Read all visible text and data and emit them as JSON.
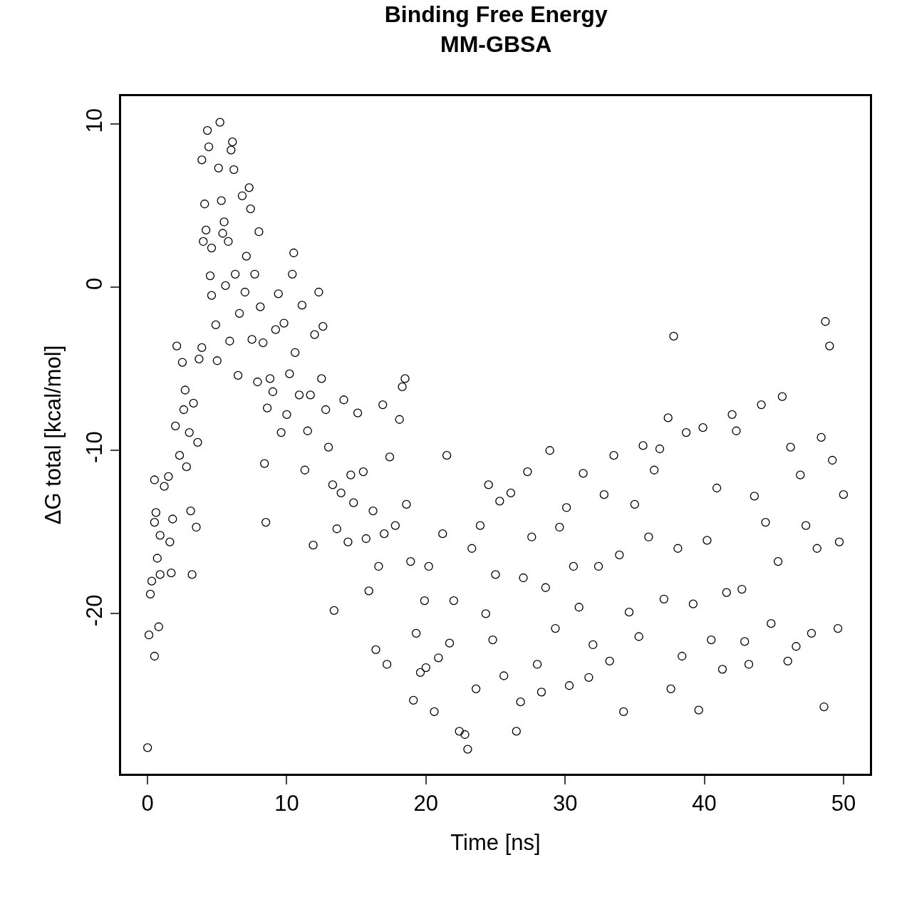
{
  "chart_data": {
    "type": "scatter",
    "title": "Binding Free Energy\nMM-GBSA",
    "xlabel": "Time [ns]",
    "ylabel": "ΔG total [kcal/mol]",
    "xlim": [
      -1.9,
      51.9
    ],
    "ylim": [
      -29.8,
      11.7
    ],
    "xticks": [
      0,
      10,
      20,
      30,
      40,
      50
    ],
    "yticks": [
      -20,
      -10,
      0,
      10
    ],
    "marker": "circle",
    "series": [
      {
        "color": "#000000",
        "x": [
          0,
          0.1,
          0.2,
          0.3,
          0.5,
          0.5,
          0.6,
          0.7,
          0.9,
          0.8,
          0.9,
          0.5,
          1.2,
          1.5,
          1.6,
          1.7,
          1.8,
          2.0,
          2.1,
          2.3,
          2.5,
          2.6,
          2.7,
          2.8,
          3.0,
          3.1,
          3.2,
          3.3,
          3.5,
          3.6,
          3.7,
          3.9,
          3.9,
          4.0,
          4.1,
          4.2,
          4.3,
          4.4,
          4.5,
          4.6,
          4.6,
          4.9,
          5.0,
          5.1,
          5.2,
          5.3,
          5.4,
          5.5,
          5.6,
          5.8,
          5.9,
          6.0,
          6.1,
          6.2,
          6.3,
          6.5,
          6.6,
          6.8,
          7.0,
          7.1,
          7.3,
          7.4,
          7.5,
          7.7,
          7.9,
          8.0,
          8.1,
          8.3,
          8.4,
          8.5,
          8.6,
          8.8,
          9.0,
          9.2,
          9.4,
          9.6,
          9.8,
          10.0,
          10.2,
          10.4,
          10.5,
          10.6,
          10.9,
          11.1,
          11.3,
          11.5,
          11.7,
          11.9,
          12.0,
          12.3,
          12.5,
          12.6,
          12.8,
          13.0,
          13.3,
          13.4,
          13.6,
          13.9,
          14.1,
          14.4,
          14.6,
          14.8,
          15.1,
          15.5,
          15.7,
          15.9,
          16.2,
          16.4,
          16.6,
          16.9,
          17.0,
          17.2,
          17.4,
          17.8,
          18.1,
          18.3,
          18.5,
          18.6,
          18.9,
          19.1,
          19.3,
          19.6,
          19.9,
          20.0,
          20.2,
          20.6,
          20.9,
          21.2,
          21.5,
          21.7,
          22.0,
          22.4,
          22.8,
          23.0,
          23.3,
          23.6,
          23.9,
          24.3,
          24.5,
          24.8,
          25.0,
          25.3,
          25.6,
          26.1,
          26.5,
          26.8,
          27.0,
          27.3,
          27.6,
          28.0,
          28.3,
          28.6,
          28.9,
          29.3,
          29.6,
          30.1,
          30.3,
          30.6,
          31.0,
          31.3,
          31.7,
          32.0,
          32.4,
          32.8,
          33.2,
          33.5,
          33.9,
          34.2,
          34.6,
          35.0,
          35.3,
          35.6,
          36.0,
          36.4,
          36.8,
          37.1,
          37.4,
          37.6,
          37.8,
          38.1,
          38.4,
          38.7,
          39.2,
          39.6,
          39.9,
          40.2,
          40.5,
          40.9,
          41.3,
          41.6,
          42.0,
          42.3,
          42.7,
          42.9,
          43.2,
          43.6,
          44.1,
          44.4,
          44.8,
          45.3,
          45.6,
          46.0,
          46.2,
          46.6,
          46.9,
          47.3,
          47.7,
          48.1,
          48.4,
          48.7,
          48.6,
          49.0,
          49.2,
          49.6,
          49.7,
          50.0
        ],
        "values": [
          -28.2,
          -21.3,
          -18.8,
          -18,
          -11.8,
          -14.4,
          -13.8,
          -16.6,
          -17.6,
          -20.8,
          -15.2,
          -22.6,
          -12.2,
          -11.6,
          -15.6,
          -17.5,
          -14.2,
          -8.5,
          -3.6,
          -10.3,
          -4.6,
          -7.5,
          -6.3,
          -11,
          -8.9,
          -13.7,
          -17.6,
          -7.1,
          -14.7,
          -9.5,
          -4.4,
          -3.7,
          7.8,
          2.8,
          5.1,
          3.5,
          9.6,
          8.6,
          0.7,
          2.4,
          -0.5,
          -2.3,
          -4.5,
          7.3,
          10.1,
          5.3,
          3.3,
          4.0,
          0.1,
          2.8,
          -3.3,
          8.4,
          8.9,
          7.2,
          0.8,
          -5.4,
          -1.6,
          5.6,
          -0.3,
          1.9,
          6.1,
          4.8,
          -3.2,
          0.8,
          -5.8,
          3.4,
          -1.2,
          -3.4,
          -10.8,
          -14.4,
          -7.4,
          -5.6,
          -6.4,
          -2.6,
          -0.4,
          -8.9,
          -2.2,
          -7.8,
          -5.3,
          0.8,
          2.1,
          -4,
          -6.6,
          -1.1,
          -11.2,
          -8.8,
          -6.6,
          -15.8,
          -2.9,
          -0.3,
          -5.6,
          -2.4,
          -7.5,
          -9.8,
          -12.1,
          -19.8,
          -14.8,
          -12.6,
          -6.9,
          -15.6,
          -11.5,
          -13.2,
          -7.7,
          -11.3,
          -15.4,
          -18.6,
          -13.7,
          -22.2,
          -17.1,
          -7.2,
          -15.1,
          -23.1,
          -10.4,
          -14.6,
          -8.1,
          -6.1,
          -5.6,
          -13.3,
          -16.8,
          -25.3,
          -21.2,
          -23.6,
          -19.2,
          -23.3,
          -17.1,
          -26,
          -22.7,
          -15.1,
          -10.3,
          -21.8,
          -19.2,
          -27.2,
          -27.4,
          -28.3,
          -16,
          -24.6,
          -14.6,
          -20,
          -12.1,
          -21.6,
          -17.6,
          -13.1,
          -23.8,
          -12.6,
          -27.2,
          -25.4,
          -17.8,
          -11.3,
          -15.3,
          -23.1,
          -24.8,
          -18.4,
          -10,
          -20.9,
          -14.7,
          -13.5,
          -24.4,
          -17.1,
          -19.6,
          -11.4,
          -23.9,
          -21.9,
          -17.1,
          -12.7,
          -22.9,
          -10.3,
          -16.4,
          -26,
          -19.9,
          -13.3,
          -21.4,
          -9.7,
          -15.3,
          -11.2,
          -9.9,
          -19.1,
          -8,
          -24.6,
          -3,
          -16,
          -22.6,
          -8.9,
          -19.4,
          -25.9,
          -8.6,
          -15.5,
          -21.6,
          -12.3,
          -23.4,
          -18.7,
          -7.8,
          -8.8,
          -18.5,
          -21.7,
          -23.1,
          -12.8,
          -7.2,
          -14.4,
          -20.6,
          -16.8,
          -6.7,
          -22.9,
          -9.8,
          -22,
          -11.5,
          -14.6,
          -21.2,
          -16,
          -9.2,
          -2.1,
          -25.7,
          -3.6,
          -10.6,
          -20.9,
          -15.6,
          -12.7
        ]
      }
    ]
  }
}
